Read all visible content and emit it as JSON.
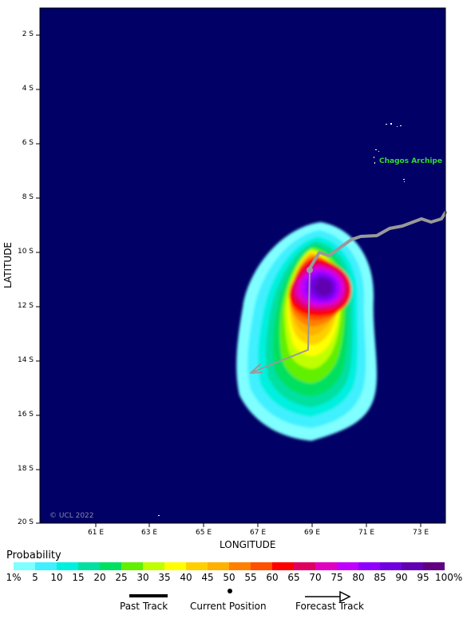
{
  "map": {
    "lat_labels": [
      "2 S",
      "4 S",
      "6 S",
      "8 S",
      "10 S",
      "12 S",
      "14 S",
      "16 S",
      "18 S",
      "20 S"
    ],
    "lon_labels": [
      "61 E",
      "63 E",
      "65 E",
      "67 E",
      "69 E",
      "71 E",
      "73 E"
    ],
    "xlabel": "LONGITUDE",
    "ylabel": "LATITUDE",
    "place_label": "Chagos Archipe",
    "copyright": "© UCL 2022",
    "ocean_color": "#000066",
    "land_color": "#000000"
  },
  "legend": {
    "title": "Probability",
    "scale_labels": [
      "1%",
      "5",
      "10",
      "15",
      "20",
      "25",
      "30",
      "35",
      "40",
      "45",
      "50",
      "55",
      "60",
      "65",
      "70",
      "75",
      "80",
      "85",
      "90",
      "95",
      "100%"
    ],
    "scale_colors": [
      "#7fffff",
      "#40f0ff",
      "#00f0e0",
      "#00e0a0",
      "#00e060",
      "#60f000",
      "#c0ff00",
      "#ffff00",
      "#ffd000",
      "#ffb000",
      "#ff8000",
      "#ff5000",
      "#ff0000",
      "#e00060",
      "#e000c0",
      "#c000ff",
      "#9000ff",
      "#7000e0",
      "#6000b0",
      "#600080"
    ],
    "past_track": "Past Track",
    "current_position": "Current Position",
    "forecast_track": "Forecast Track"
  }
}
